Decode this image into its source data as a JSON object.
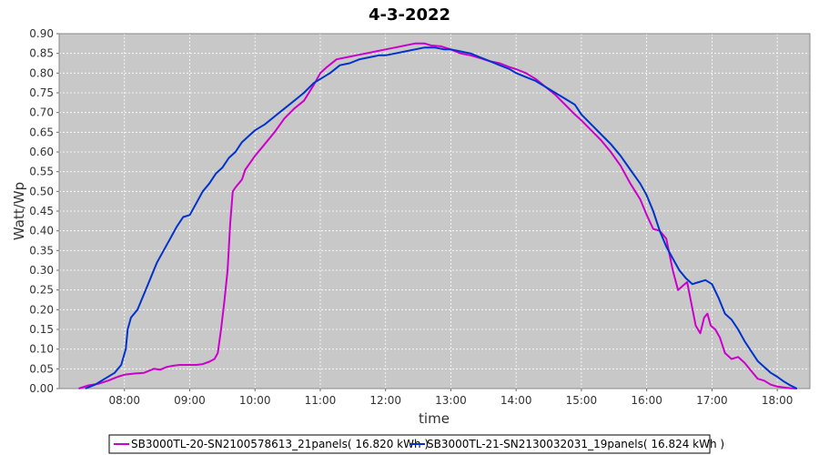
{
  "chart_data": {
    "type": "line",
    "title": "4-3-2022",
    "xlabel": "time",
    "ylabel": "Watt/Wp",
    "xlim": [
      7.0,
      18.5
    ],
    "ylim": [
      0.0,
      0.9
    ],
    "x_ticks": [
      {
        "value": 8,
        "label": "08:00"
      },
      {
        "value": 9,
        "label": "09:00"
      },
      {
        "value": 10,
        "label": "10:00"
      },
      {
        "value": 11,
        "label": "11:00"
      },
      {
        "value": 12,
        "label": "12:00"
      },
      {
        "value": 13,
        "label": "13:00"
      },
      {
        "value": 14,
        "label": "14:00"
      },
      {
        "value": 15,
        "label": "15:00"
      },
      {
        "value": 16,
        "label": "16:00"
      },
      {
        "value": 17,
        "label": "17:00"
      },
      {
        "value": 18,
        "label": "18:00"
      }
    ],
    "y_ticks": [
      {
        "value": 0.0,
        "label": "0.00"
      },
      {
        "value": 0.05,
        "label": "0.05"
      },
      {
        "value": 0.1,
        "label": "0.10"
      },
      {
        "value": 0.15,
        "label": "0.15"
      },
      {
        "value": 0.2,
        "label": "0.20"
      },
      {
        "value": 0.25,
        "label": "0.25"
      },
      {
        "value": 0.3,
        "label": "0.30"
      },
      {
        "value": 0.35,
        "label": "0.35"
      },
      {
        "value": 0.4,
        "label": "0.40"
      },
      {
        "value": 0.45,
        "label": "0.45"
      },
      {
        "value": 0.5,
        "label": "0.50"
      },
      {
        "value": 0.55,
        "label": "0.55"
      },
      {
        "value": 0.6,
        "label": "0.60"
      },
      {
        "value": 0.65,
        "label": "0.65"
      },
      {
        "value": 0.7,
        "label": "0.70"
      },
      {
        "value": 0.75,
        "label": "0.75"
      },
      {
        "value": 0.8,
        "label": "0.80"
      },
      {
        "value": 0.85,
        "label": "0.85"
      },
      {
        "value": 0.9,
        "label": "0.90"
      }
    ],
    "grid": true,
    "legend_position": "bottom",
    "colors": {
      "plot_background": "#c8c8c8",
      "grid": "#ffffff"
    },
    "series": [
      {
        "name": "SB3000TL-20-SN2100578613_21panels( 16.820 kWh )",
        "color": "#cc00cc",
        "x": [
          7.3,
          7.45,
          7.6,
          7.75,
          7.9,
          8.0,
          8.15,
          8.3,
          8.45,
          8.55,
          8.65,
          8.75,
          8.85,
          9.0,
          9.1,
          9.2,
          9.3,
          9.38,
          9.43,
          9.48,
          9.53,
          9.58,
          9.62,
          9.66,
          9.7,
          9.75,
          9.8,
          9.85,
          10.0,
          10.15,
          10.3,
          10.45,
          10.6,
          10.75,
          10.9,
          11.0,
          11.1,
          11.25,
          11.4,
          11.55,
          11.7,
          11.85,
          12.0,
          12.15,
          12.3,
          12.45,
          12.6,
          12.7,
          12.85,
          13.0,
          13.15,
          13.3,
          13.45,
          13.6,
          13.75,
          13.9,
          14.0,
          14.15,
          14.3,
          14.45,
          14.6,
          14.75,
          14.9,
          15.0,
          15.15,
          15.3,
          15.45,
          15.6,
          15.75,
          15.9,
          16.0,
          16.1,
          16.2,
          16.3,
          16.4,
          16.48,
          16.55,
          16.62,
          16.68,
          16.75,
          16.82,
          16.88,
          16.93,
          16.98,
          17.05,
          17.12,
          17.2,
          17.3,
          17.4,
          17.5,
          17.6,
          17.7,
          17.8,
          17.9,
          18.0,
          18.1,
          18.2,
          18.3
        ],
        "y": [
          0.0,
          0.008,
          0.012,
          0.02,
          0.03,
          0.035,
          0.038,
          0.04,
          0.05,
          0.048,
          0.055,
          0.058,
          0.06,
          0.06,
          0.06,
          0.062,
          0.068,
          0.075,
          0.09,
          0.15,
          0.22,
          0.3,
          0.42,
          0.5,
          0.51,
          0.52,
          0.53,
          0.555,
          0.59,
          0.62,
          0.65,
          0.685,
          0.71,
          0.73,
          0.77,
          0.8,
          0.815,
          0.835,
          0.84,
          0.845,
          0.85,
          0.855,
          0.86,
          0.865,
          0.87,
          0.875,
          0.875,
          0.87,
          0.868,
          0.86,
          0.85,
          0.845,
          0.838,
          0.83,
          0.825,
          0.815,
          0.81,
          0.8,
          0.785,
          0.765,
          0.745,
          0.72,
          0.695,
          0.68,
          0.655,
          0.63,
          0.6,
          0.565,
          0.52,
          0.48,
          0.44,
          0.405,
          0.4,
          0.38,
          0.3,
          0.25,
          0.26,
          0.27,
          0.22,
          0.16,
          0.14,
          0.18,
          0.19,
          0.16,
          0.15,
          0.13,
          0.09,
          0.075,
          0.08,
          0.065,
          0.045,
          0.025,
          0.02,
          0.01,
          0.005,
          0.003,
          0.001,
          0.0
        ]
      },
      {
        "name": "SB3000TL-21-SN2130032031_19panels( 16.824 kWh )",
        "color": "#0033cc",
        "x": [
          7.4,
          7.55,
          7.7,
          7.85,
          7.95,
          8.02,
          8.05,
          8.1,
          8.2,
          8.3,
          8.4,
          8.5,
          8.6,
          8.7,
          8.8,
          8.9,
          9.0,
          9.1,
          9.2,
          9.3,
          9.4,
          9.5,
          9.6,
          9.7,
          9.8,
          9.9,
          10.0,
          10.15,
          10.3,
          10.45,
          10.6,
          10.75,
          10.9,
          11.0,
          11.15,
          11.3,
          11.45,
          11.6,
          11.75,
          11.9,
          12.0,
          12.15,
          12.3,
          12.45,
          12.6,
          12.75,
          12.9,
          13.0,
          13.15,
          13.3,
          13.45,
          13.6,
          13.75,
          13.9,
          14.0,
          14.15,
          14.3,
          14.45,
          14.6,
          14.75,
          14.9,
          15.0,
          15.15,
          15.3,
          15.45,
          15.6,
          15.75,
          15.9,
          16.0,
          16.1,
          16.2,
          16.3,
          16.4,
          16.5,
          16.6,
          16.7,
          16.8,
          16.9,
          17.0,
          17.1,
          17.2,
          17.3,
          17.4,
          17.5,
          17.6,
          17.7,
          17.8,
          17.9,
          18.0,
          18.1,
          18.2,
          18.3
        ],
        "y": [
          0.0,
          0.01,
          0.025,
          0.04,
          0.06,
          0.1,
          0.15,
          0.18,
          0.2,
          0.24,
          0.28,
          0.32,
          0.35,
          0.38,
          0.41,
          0.435,
          0.44,
          0.47,
          0.5,
          0.52,
          0.545,
          0.56,
          0.585,
          0.6,
          0.625,
          0.64,
          0.655,
          0.67,
          0.69,
          0.71,
          0.73,
          0.75,
          0.775,
          0.785,
          0.8,
          0.82,
          0.825,
          0.835,
          0.84,
          0.845,
          0.845,
          0.85,
          0.855,
          0.86,
          0.865,
          0.865,
          0.86,
          0.86,
          0.855,
          0.85,
          0.84,
          0.83,
          0.82,
          0.81,
          0.8,
          0.79,
          0.78,
          0.765,
          0.75,
          0.735,
          0.72,
          0.695,
          0.67,
          0.645,
          0.62,
          0.59,
          0.555,
          0.52,
          0.49,
          0.45,
          0.4,
          0.36,
          0.33,
          0.3,
          0.28,
          0.265,
          0.27,
          0.275,
          0.265,
          0.23,
          0.19,
          0.175,
          0.15,
          0.12,
          0.095,
          0.07,
          0.055,
          0.04,
          0.03,
          0.018,
          0.008,
          0.0
        ]
      }
    ]
  }
}
